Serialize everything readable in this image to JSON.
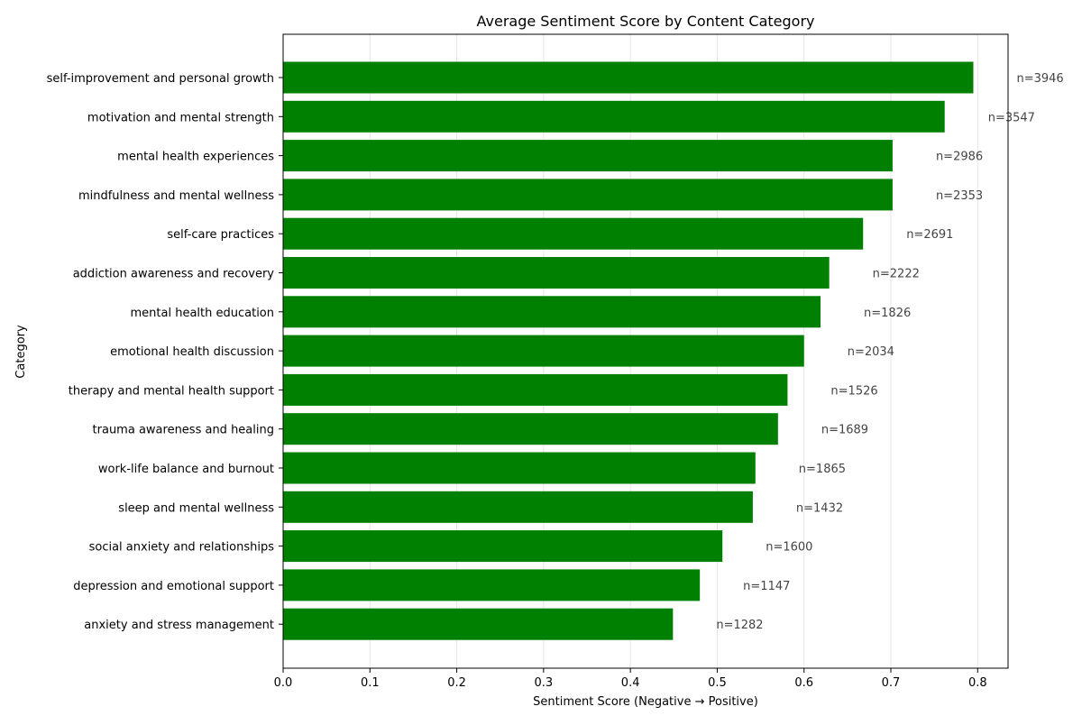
{
  "chart_data": {
    "type": "bar",
    "orientation": "horizontal",
    "title": "Average Sentiment Score by Content Category",
    "xlabel": "Sentiment Score (Negative → Positive)",
    "ylabel": "Category",
    "xlim": [
      0,
      0.835
    ],
    "xticks": [
      "0.0",
      "0.1",
      "0.2",
      "0.3",
      "0.4",
      "0.5",
      "0.6",
      "0.7",
      "0.8"
    ],
    "grid": "vertical",
    "bar_color": "#008000",
    "annotation_color": "#444444",
    "categories": [
      "self-improvement and personal growth",
      "motivation and mental strength",
      "mental health experiences",
      "mindfulness and mental wellness",
      "self-care practices",
      "addiction awareness and recovery",
      "mental health education",
      "emotional health discussion",
      "therapy and mental health support",
      "trauma awareness and healing",
      "work-life balance and burnout",
      "sleep and mental wellness",
      "social anxiety and relationships",
      "depression and emotional support",
      "anxiety and stress management"
    ],
    "values": [
      0.795,
      0.762,
      0.702,
      0.702,
      0.668,
      0.629,
      0.619,
      0.6,
      0.581,
      0.57,
      0.544,
      0.541,
      0.506,
      0.48,
      0.449
    ],
    "annotations": [
      "n=3946",
      "n=3547",
      "n=2986",
      "n=2353",
      "n=2691",
      "n=2222",
      "n=1826",
      "n=2034",
      "n=1526",
      "n=1689",
      "n=1865",
      "n=1432",
      "n=1600",
      "n=1147",
      "n=1282"
    ]
  }
}
